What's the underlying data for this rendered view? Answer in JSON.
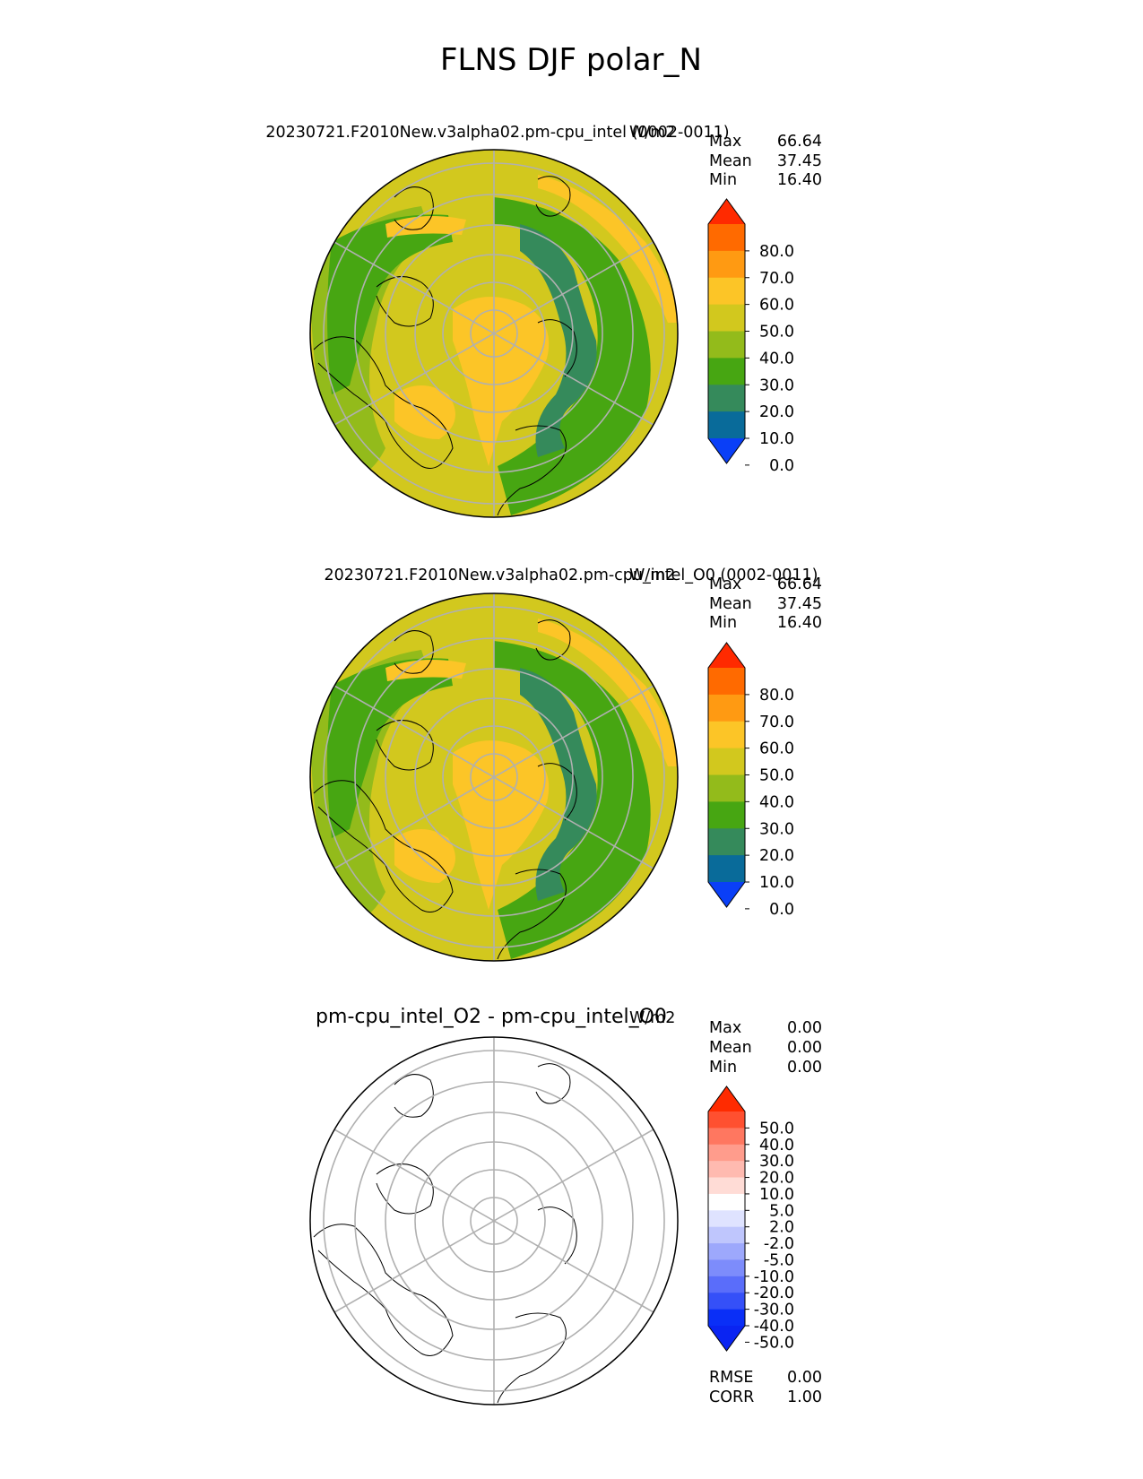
{
  "figure": {
    "title": "FLNS DJF polar_N"
  },
  "chart_data": [
    {
      "type": "heatmap",
      "projection": "north-polar-stereographic",
      "title": "20230721.F2010New.v3alpha02.pm-cpu_intel (0002-0011)",
      "units": "W/m2",
      "stats": [
        {
          "label": "Max",
          "value": "66.64"
        },
        {
          "label": "Mean",
          "value": "37.45"
        },
        {
          "label": "Min",
          "value": "16.40"
        }
      ],
      "colorbar": {
        "ticks": [
          "80.0",
          "70.0",
          "60.0",
          "50.0",
          "40.0",
          "30.0",
          "20.0",
          "10.0",
          "0.0"
        ],
        "colors": [
          "#ff2a00",
          "#ff6a00",
          "#ff9a12",
          "#fcc527",
          "#d2c81e",
          "#93bb1b",
          "#47a612",
          "#358a5b",
          "#096b9a",
          "#0a3ff7"
        ],
        "extend": "both"
      },
      "grid": true
    },
    {
      "type": "heatmap",
      "projection": "north-polar-stereographic",
      "title": "20230721.F2010New.v3alpha02.pm-cpu_intel_O0 (0002-0011)",
      "units": "W/m2",
      "stats": [
        {
          "label": "Max",
          "value": "66.64"
        },
        {
          "label": "Mean",
          "value": "37.45"
        },
        {
          "label": "Min",
          "value": "16.40"
        }
      ],
      "colorbar": {
        "ticks": [
          "80.0",
          "70.0",
          "60.0",
          "50.0",
          "40.0",
          "30.0",
          "20.0",
          "10.0",
          "0.0"
        ],
        "colors": [
          "#ff2a00",
          "#ff6a00",
          "#ff9a12",
          "#fcc527",
          "#d2c81e",
          "#93bb1b",
          "#47a612",
          "#358a5b",
          "#096b9a",
          "#0a3ff7"
        ],
        "extend": "both"
      },
      "grid": true
    },
    {
      "type": "heatmap",
      "projection": "north-polar-stereographic",
      "title": "pm-cpu_intel_O2 - pm-cpu_intel_O0",
      "units": "W/m2",
      "stats": [
        {
          "label": "Max",
          "value": "0.00"
        },
        {
          "label": "Mean",
          "value": "0.00"
        },
        {
          "label": "Min",
          "value": "0.00"
        }
      ],
      "colorbar": {
        "ticks": [
          "50.0",
          "40.0",
          "30.0",
          "20.0",
          "10.0",
          "5.0",
          "2.0",
          "-2.0",
          "-5.0",
          "-10.0",
          "-20.0",
          "-30.0",
          "-40.0",
          "-50.0"
        ],
        "colors": [
          "#ff2b00",
          "#ff5030",
          "#ff7760",
          "#ff9c8c",
          "#ffbab0",
          "#ffdcd6",
          "#ffffff",
          "#dfe3ff",
          "#bfc6fd",
          "#9da8fc",
          "#7d8cfb",
          "#5a6dfa",
          "#3550f8",
          "#0a2ff7",
          "#0a24f2"
        ],
        "extend": "both",
        "field": "zero everywhere"
      },
      "grid": true,
      "footer_stats": [
        {
          "label": "RMSE",
          "value": "0.00"
        },
        {
          "label": "CORR",
          "value": "1.00"
        }
      ]
    }
  ]
}
